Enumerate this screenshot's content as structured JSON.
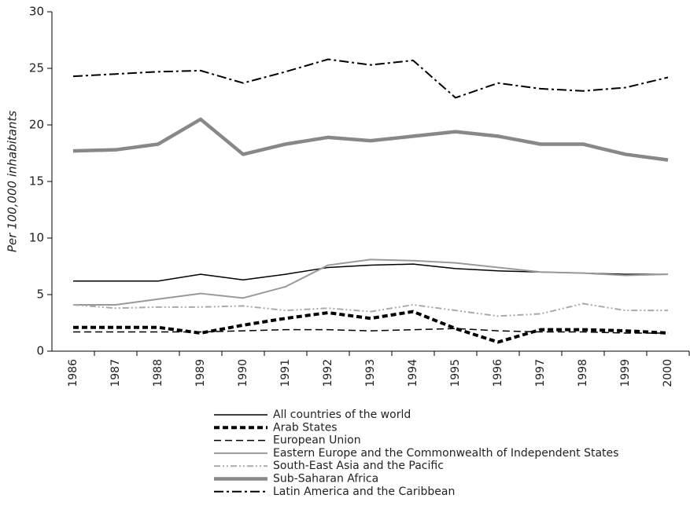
{
  "chart_data": {
    "type": "line",
    "y_label": "Per 100,000 inhabitants",
    "categories": [
      "1986",
      "1987",
      "1988",
      "1989",
      "1990",
      "1991",
      "1992",
      "1993",
      "1994",
      "1995",
      "1996",
      "1997",
      "1998",
      "1999",
      "2000"
    ],
    "ylim": [
      0,
      30
    ],
    "yticks": [
      0,
      5,
      10,
      15,
      20,
      25,
      30
    ],
    "series": [
      {
        "name": "All countries of the world",
        "color": "#000000",
        "width": 1.5,
        "dash": "none",
        "values": [
          6.2,
          6.2,
          6.2,
          6.8,
          6.3,
          6.8,
          7.4,
          7.6,
          7.7,
          7.3,
          7.1,
          7.0,
          6.9,
          6.8,
          6.8
        ]
      },
      {
        "name": "Arab States",
        "color": "#000000",
        "width": 4,
        "dash": "7 4",
        "values": [
          2.1,
          2.1,
          2.1,
          1.6,
          2.3,
          2.9,
          3.4,
          2.9,
          3.5,
          2.0,
          0.8,
          1.9,
          1.9,
          1.8,
          1.6
        ]
      },
      {
        "name": "European Union",
        "color": "#000000",
        "width": 1.5,
        "dash": "9 5",
        "values": [
          1.7,
          1.7,
          1.7,
          1.7,
          1.8,
          1.9,
          1.9,
          1.8,
          1.9,
          2.0,
          1.8,
          1.7,
          1.7,
          1.6,
          1.6
        ]
      },
      {
        "name": "Eastern Europe and the Commonwealth of Independent States",
        "color": "#999999",
        "width": 2,
        "dash": "none",
        "values": [
          4.1,
          4.1,
          4.6,
          5.1,
          4.7,
          5.7,
          7.6,
          8.1,
          8.0,
          7.8,
          7.4,
          7.0,
          6.9,
          6.7,
          6.8
        ]
      },
      {
        "name": "South-East Asia and the Pacific",
        "color": "#aaaaaa",
        "width": 2,
        "dash": "8 3 2 3 2 3",
        "values": [
          4.1,
          3.8,
          3.9,
          3.9,
          4.0,
          3.6,
          3.8,
          3.5,
          4.1,
          3.6,
          3.1,
          3.3,
          4.2,
          3.6,
          3.6
        ]
      },
      {
        "name": "Sub-Saharan Africa",
        "color": "#888888",
        "width": 4.5,
        "dash": "none",
        "values": [
          17.7,
          17.8,
          18.3,
          20.5,
          17.4,
          18.3,
          18.9,
          18.6,
          19.0,
          19.4,
          19.0,
          18.3,
          18.3,
          17.4,
          16.9
        ]
      },
      {
        "name": "Latin America and the Caribbean",
        "color": "#000000",
        "width": 2,
        "dash": "12 4 3 4",
        "values": [
          24.3,
          24.5,
          24.7,
          24.8,
          23.7,
          24.7,
          25.8,
          25.3,
          25.7,
          22.4,
          23.7,
          23.2,
          23.0,
          23.3,
          24.2
        ]
      }
    ]
  }
}
